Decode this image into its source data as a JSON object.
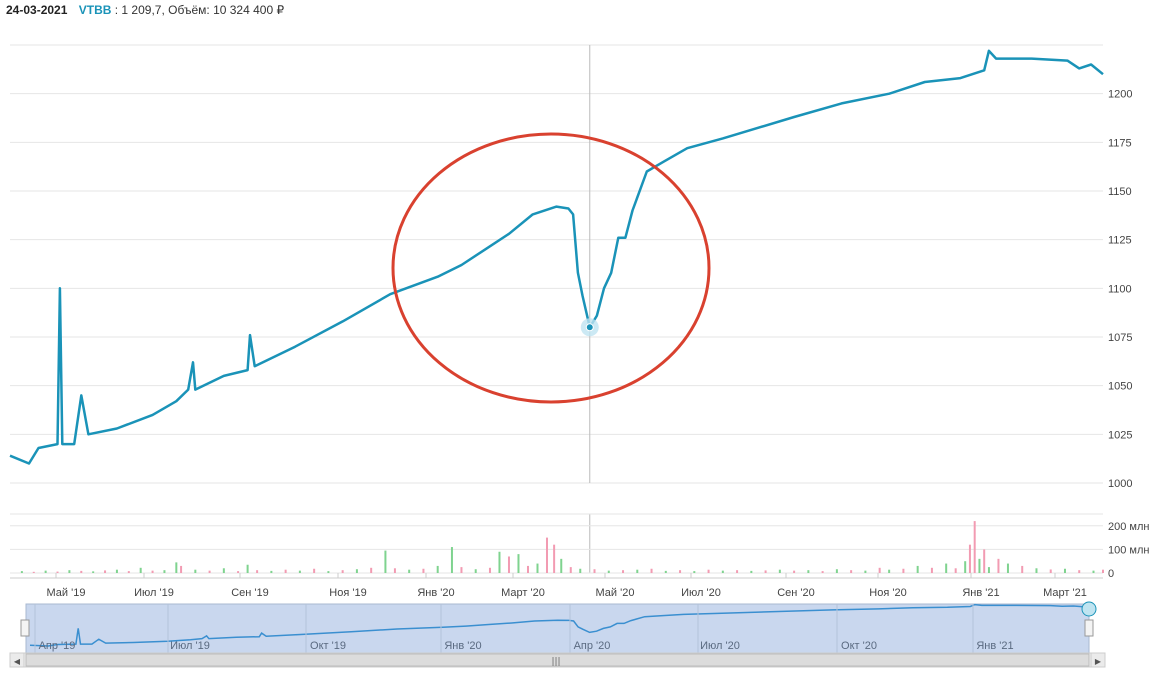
{
  "header": {
    "date": "24-03-2021",
    "ticker": "VTBB",
    "price_text": "1 209,7",
    "volume_label": "Объём:",
    "volume_value": "10 324 400 ₽"
  },
  "colors": {
    "price_line": "#1a93b8",
    "annotation_circle": "#d9412f",
    "volume_up": "#7fd38f",
    "volume_down": "#f29bb2",
    "navigator_fill": "#c9d7ee",
    "navigator_line": "#3a8fd0"
  },
  "chart_data": [
    {
      "type": "line",
      "name": "price",
      "ylim": [
        1000,
        1225
      ],
      "yticks": [
        1000,
        1025,
        1050,
        1075,
        1100,
        1125,
        1150,
        1175,
        1200
      ],
      "x_tick_labels": [
        "Май '19",
        "Июл '19",
        "Сен '19",
        "Ноя '19",
        "Янв '20",
        "Март '20",
        "Май '20",
        "Июл '20",
        "Сен '20",
        "Ноя '20",
        "Янв '21",
        "Март '21"
      ],
      "points": [
        [
          0,
          1014
        ],
        [
          8,
          1010
        ],
        [
          12,
          1018
        ],
        [
          20,
          1020
        ],
        [
          21,
          1100
        ],
        [
          22,
          1020
        ],
        [
          27,
          1020
        ],
        [
          30,
          1045
        ],
        [
          33,
          1025
        ],
        [
          45,
          1028
        ],
        [
          60,
          1035
        ],
        [
          70,
          1042
        ],
        [
          75,
          1048
        ],
        [
          77,
          1062
        ],
        [
          78,
          1048
        ],
        [
          90,
          1055
        ],
        [
          100,
          1058
        ],
        [
          101,
          1076
        ],
        [
          103,
          1060
        ],
        [
          120,
          1070
        ],
        [
          140,
          1083
        ],
        [
          160,
          1097
        ],
        [
          180,
          1106
        ],
        [
          190,
          1112
        ],
        [
          200,
          1120
        ],
        [
          210,
          1128
        ],
        [
          220,
          1138
        ],
        [
          230,
          1142
        ],
        [
          235,
          1141
        ],
        [
          237,
          1138
        ],
        [
          239,
          1108
        ],
        [
          241,
          1096
        ],
        [
          244,
          1080
        ],
        [
          247,
          1086
        ],
        [
          250,
          1100
        ],
        [
          253,
          1108
        ],
        [
          256,
          1126
        ],
        [
          259,
          1126
        ],
        [
          262,
          1140
        ],
        [
          268,
          1160
        ],
        [
          275,
          1165
        ],
        [
          285,
          1172
        ],
        [
          300,
          1177
        ],
        [
          330,
          1188
        ],
        [
          350,
          1195
        ],
        [
          370,
          1200
        ],
        [
          385,
          1206
        ],
        [
          400,
          1208
        ],
        [
          410,
          1212
        ],
        [
          412,
          1222
        ],
        [
          415,
          1218
        ],
        [
          430,
          1218
        ],
        [
          445,
          1217
        ],
        [
          450,
          1213
        ],
        [
          455,
          1215
        ],
        [
          460,
          1210
        ]
      ],
      "last_point": {
        "label": "Март '20",
        "value": 1080
      },
      "annotation": "circle around March 2020 dip"
    },
    {
      "type": "bar",
      "name": "volume",
      "yticks_labels": [
        "200 млн",
        "100 млн",
        "0"
      ],
      "ylim": [
        0,
        250
      ],
      "bars": [
        [
          5,
          8,
          0
        ],
        [
          10,
          5,
          1
        ],
        [
          15,
          10,
          0
        ],
        [
          20,
          6,
          1
        ],
        [
          25,
          12,
          0
        ],
        [
          30,
          9,
          1
        ],
        [
          35,
          7,
          0
        ],
        [
          40,
          11,
          1
        ],
        [
          45,
          14,
          0
        ],
        [
          50,
          8,
          1
        ],
        [
          55,
          22,
          0
        ],
        [
          60,
          10,
          1
        ],
        [
          65,
          12,
          0
        ],
        [
          70,
          45,
          0
        ],
        [
          72,
          30,
          1
        ],
        [
          78,
          14,
          0
        ],
        [
          84,
          10,
          1
        ],
        [
          90,
          20,
          0
        ],
        [
          96,
          8,
          1
        ],
        [
          100,
          35,
          0
        ],
        [
          104,
          12,
          1
        ],
        [
          110,
          9,
          0
        ],
        [
          116,
          14,
          1
        ],
        [
          122,
          10,
          0
        ],
        [
          128,
          18,
          1
        ],
        [
          134,
          8,
          0
        ],
        [
          140,
          12,
          1
        ],
        [
          146,
          16,
          0
        ],
        [
          152,
          22,
          1
        ],
        [
          158,
          95,
          0
        ],
        [
          162,
          20,
          1
        ],
        [
          168,
          14,
          0
        ],
        [
          174,
          18,
          1
        ],
        [
          180,
          30,
          0
        ],
        [
          186,
          110,
          0
        ],
        [
          190,
          25,
          1
        ],
        [
          196,
          16,
          0
        ],
        [
          202,
          22,
          1
        ],
        [
          206,
          90,
          0
        ],
        [
          210,
          70,
          1
        ],
        [
          214,
          80,
          0
        ],
        [
          218,
          30,
          1
        ],
        [
          222,
          40,
          0
        ],
        [
          226,
          150,
          1
        ],
        [
          229,
          120,
          1
        ],
        [
          232,
          60,
          0
        ],
        [
          236,
          25,
          1
        ],
        [
          240,
          18,
          0
        ],
        [
          246,
          16,
          1
        ],
        [
          252,
          10,
          0
        ],
        [
          258,
          12,
          1
        ],
        [
          264,
          14,
          0
        ],
        [
          270,
          18,
          1
        ],
        [
          276,
          9,
          0
        ],
        [
          282,
          12,
          1
        ],
        [
          288,
          8,
          0
        ],
        [
          294,
          14,
          1
        ],
        [
          300,
          10,
          0
        ],
        [
          306,
          12,
          1
        ],
        [
          312,
          9,
          0
        ],
        [
          318,
          11,
          1
        ],
        [
          324,
          14,
          0
        ],
        [
          330,
          10,
          1
        ],
        [
          336,
          12,
          0
        ],
        [
          342,
          8,
          1
        ],
        [
          348,
          16,
          0
        ],
        [
          354,
          12,
          1
        ],
        [
          360,
          10,
          0
        ],
        [
          366,
          22,
          1
        ],
        [
          370,
          14,
          0
        ],
        [
          376,
          18,
          1
        ],
        [
          382,
          30,
          0
        ],
        [
          388,
          22,
          1
        ],
        [
          394,
          40,
          0
        ],
        [
          398,
          20,
          1
        ],
        [
          402,
          50,
          0
        ],
        [
          404,
          120,
          1
        ],
        [
          406,
          220,
          1
        ],
        [
          408,
          60,
          0
        ],
        [
          410,
          100,
          1
        ],
        [
          412,
          25,
          0
        ],
        [
          416,
          60,
          1
        ],
        [
          420,
          40,
          0
        ],
        [
          426,
          30,
          1
        ],
        [
          432,
          20,
          0
        ],
        [
          438,
          15,
          1
        ],
        [
          444,
          18,
          0
        ],
        [
          450,
          12,
          1
        ],
        [
          456,
          10,
          0
        ],
        [
          460,
          14,
          1
        ]
      ]
    }
  ],
  "navigator": {
    "labels": [
      "Апр '19",
      "Июл '19",
      "Окт '19",
      "Янв '20",
      "Апр '20",
      "Июл '20",
      "Окт '20",
      "Янв '21"
    ],
    "scroll_left_arrow": "◀",
    "scroll_right_arrow": "▶",
    "grip": "|||"
  }
}
